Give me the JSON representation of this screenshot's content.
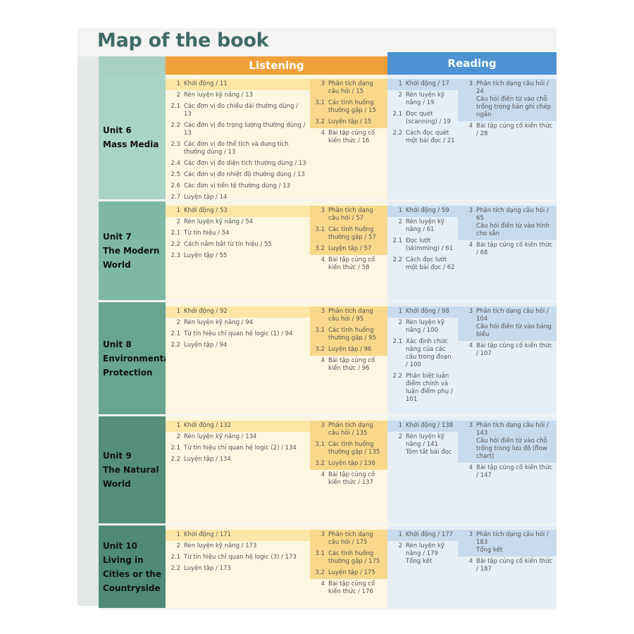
{
  "title": "Map of the book",
  "headers": {
    "listening": "Listening",
    "reading": "Reading"
  },
  "colors": {
    "listening": "#f0a03a",
    "reading": "#4d92d2",
    "unit": "#5f9e88"
  },
  "units": [
    {
      "lines": [
        "Unit 6",
        "Mass Media"
      ],
      "listening_a": [
        {
          "n": "1",
          "t": "Khởi động / 11",
          "hl": true
        },
        {
          "n": "2",
          "t": "Rèn luyện kỹ năng / 13"
        },
        {
          "n": "2.1",
          "t": "Các đơn vị đo chiều dài thường dùng / 13"
        },
        {
          "n": "2.2",
          "t": "Các đơn vị đo trọng lượng thường dùng / 13"
        },
        {
          "n": "2.3",
          "t": "Các đơn vị đo thể tích và dung tích thường dùng / 13"
        },
        {
          "n": "2.4",
          "t": "Các đơn vị đo diện tích thường dùng / 13"
        },
        {
          "n": "2.5",
          "t": "Các đơn vị đo nhiệt độ thường dùng / 13"
        },
        {
          "n": "2.6",
          "t": "Các đơn vị tiền tệ thường dùng / 13"
        },
        {
          "n": "2.7",
          "t": "Luyện tập / 14"
        }
      ],
      "listening_b": [
        {
          "n": "3",
          "t": "Phân tích dạng câu hỏi / 15",
          "hl": true
        },
        {
          "n": "3.1",
          "t": "Các tình huống thường gặp / 15",
          "hl": true
        },
        {
          "n": "3.2",
          "t": "Luyện tập / 15",
          "hl": true
        },
        {
          "n": "4",
          "t": "Bài tập củng cố kiến thức / 16"
        }
      ],
      "reading_a": [
        {
          "n": "1",
          "t": "Khởi động / 17",
          "hl": true
        },
        {
          "n": "2",
          "t": "Rèn luyện kỹ năng / 19"
        },
        {
          "n": "2.1",
          "t": "Đọc quét (scanning) / 19"
        },
        {
          "n": "2.2",
          "t": "Cách đọc quét một bài đọc / 21"
        }
      ],
      "reading_b": [
        {
          "n": "3",
          "t": "Phân tích dạng câu hỏi / 24",
          "s": "Câu hỏi điền từ vào chỗ trống trong bản ghi chép ngắn",
          "hl": true
        },
        {
          "n": "4",
          "t": "Bài tập củng cố kiến thức / 28"
        }
      ]
    },
    {
      "lines": [
        "Unit 7",
        "The Modern",
        "World"
      ],
      "listening_a": [
        {
          "n": "1",
          "t": "Khởi động / 53",
          "hl": true
        },
        {
          "n": "2",
          "t": "Rèn luyện kỹ năng / 54"
        },
        {
          "n": "2.1",
          "t": "Từ tín hiệu / 54"
        },
        {
          "n": "2.2",
          "t": "Cách nắm bắt từ tín hiệu / 55"
        },
        {
          "n": "2.3",
          "t": "Luyện tập / 55"
        }
      ],
      "listening_b": [
        {
          "n": "3",
          "t": "Phân tích dạng câu hỏi / 57",
          "hl": true
        },
        {
          "n": "3.1",
          "t": "Các tình huống thường gặp / 57",
          "hl": true
        },
        {
          "n": "3.2",
          "t": "Luyện tập / 57",
          "hl": true
        },
        {
          "n": "4",
          "t": "Bài tập củng cố kiến thức / 58"
        }
      ],
      "reading_a": [
        {
          "n": "1",
          "t": "Khởi động / 59",
          "hl": true
        },
        {
          "n": "2",
          "t": "Rèn luyện kỹ năng / 61"
        },
        {
          "n": "2.1",
          "t": "Đọc lướt (skimming) / 61"
        },
        {
          "n": "2.2",
          "t": "Cách đọc lướt một bài đọc / 62"
        }
      ],
      "reading_b": [
        {
          "n": "3",
          "t": "Phân tích dạng câu hỏi / 65",
          "s": "Câu hỏi điền từ vào hình cho sẵn",
          "hl": true
        },
        {
          "n": "4",
          "t": "Bài tập củng cố kiến thức / 68"
        }
      ]
    },
    {
      "lines": [
        "Unit 8",
        "Environmental",
        "Protection"
      ],
      "listening_a": [
        {
          "n": "1",
          "t": "Khởi động / 92",
          "hl": true
        },
        {
          "n": "2",
          "t": "Rèn luyện kỹ năng / 94"
        },
        {
          "n": "2.1",
          "t": "Từ tín hiệu chỉ quan hệ logic (1) / 94"
        },
        {
          "n": "2.2",
          "t": "Luyện tập / 94"
        }
      ],
      "listening_b": [
        {
          "n": "3",
          "t": "Phân tích dạng câu hỏi / 95",
          "hl": true
        },
        {
          "n": "3.1",
          "t": "Các tình huống thường gặp / 95",
          "hl": true
        },
        {
          "n": "3.2",
          "t": "Luyện tập / 96",
          "hl": true
        },
        {
          "n": "4",
          "t": "Bài tập củng cố kiến thức / 96"
        }
      ],
      "reading_a": [
        {
          "n": "1",
          "t": "Khởi động / 98",
          "hl": true
        },
        {
          "n": "2",
          "t": "Rèn luyện kỹ năng / 100"
        },
        {
          "n": "2.1",
          "t": "Xác định chức năng của các câu trong đoạn / 100"
        },
        {
          "n": "2.2",
          "t": "Phân biệt luận điểm chính và luận điểm phụ / 101"
        }
      ],
      "reading_b": [
        {
          "n": "3",
          "t": "Phân tích dạng câu hỏi / 104",
          "s": "Câu hỏi điền từ vào bảng biểu",
          "hl": true
        },
        {
          "n": "4",
          "t": "Bài tập củng cố kiến thức / 107"
        }
      ]
    },
    {
      "lines": [
        "Unit 9",
        "The Natural",
        "World"
      ],
      "listening_a": [
        {
          "n": "1",
          "t": "Khởi động / 132",
          "hl": true
        },
        {
          "n": "2",
          "t": "Rèn luyện kỹ năng / 134"
        },
        {
          "n": "2.1",
          "t": "Từ tín hiệu chỉ quan hệ logic (2) / 134"
        },
        {
          "n": "2.2",
          "t": "Luyện tập / 134"
        }
      ],
      "listening_b": [
        {
          "n": "3",
          "t": "Phân tích dạng câu hỏi / 135",
          "hl": true
        },
        {
          "n": "3.1",
          "t": "Các tình huống thường gặp / 135",
          "hl": true
        },
        {
          "n": "3.2",
          "t": "Luyện tập / 136",
          "hl": true
        },
        {
          "n": "4",
          "t": "Bài tập củng cố kiến thức / 137"
        }
      ],
      "reading_a": [
        {
          "n": "1",
          "t": "Khởi động / 138",
          "hl": true
        },
        {
          "n": "2",
          "t": "Rèn luyện kỹ năng / 141",
          "s": "Tóm tắt bài đọc"
        }
      ],
      "reading_b": [
        {
          "n": "3",
          "t": "Phân tích dạng câu hỏi / 143",
          "s": "Câu hỏi điền từ vào chỗ trống trong lưu đồ (flow chart)",
          "hl": true
        },
        {
          "n": "4",
          "t": "Bài tập củng cố kiến thức / 147"
        }
      ]
    },
    {
      "lines": [
        "Unit 10",
        "Living in",
        "Cities or the",
        "Countryside"
      ],
      "listening_a": [
        {
          "n": "1",
          "t": "Khởi động / 171",
          "hl": true
        },
        {
          "n": "2",
          "t": "Rèn luyện kỹ năng / 173"
        },
        {
          "n": "2.1",
          "t": "Từ tín hiệu chỉ quan hệ logic (3) / 173"
        },
        {
          "n": "2.2",
          "t": "Luyện tập / 173"
        }
      ],
      "listening_b": [
        {
          "n": "3",
          "t": "Phân tích dạng câu hỏi / 175",
          "hl": true
        },
        {
          "n": "3.1",
          "t": "Các tình huống thường gặp / 175",
          "hl": true
        },
        {
          "n": "3.2",
          "t": "Luyện tập / 175",
          "hl": true
        },
        {
          "n": "4",
          "t": "Bài tập củng cố kiến thức / 176"
        }
      ],
      "reading_a": [
        {
          "n": "1",
          "t": "Khởi động / 177",
          "hl": true
        },
        {
          "n": "2",
          "t": "Rèn luyện kỹ năng / 179",
          "s": "Tổng kết"
        }
      ],
      "reading_b": [
        {
          "n": "3",
          "t": "Phân tích dạng câu hỏi / 183",
          "s": "Tổng kết",
          "hl": true
        },
        {
          "n": "4",
          "t": "Bài tập củng cố kiến thức / 187"
        }
      ]
    }
  ]
}
